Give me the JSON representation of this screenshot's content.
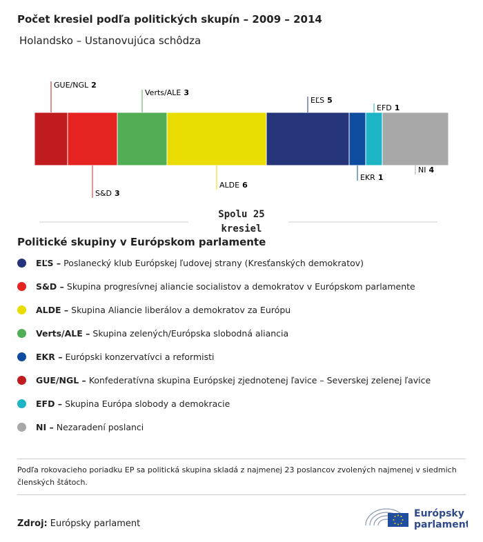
{
  "chart_data": {
    "type": "stacked_bar",
    "title": "Počet kresiel podľa politických skupín – 2009 – 2014",
    "subtitle": "Holandsko – Ustanovujúca schôdza",
    "total_label": "Spolu 25 kresiel",
    "series": [
      {
        "name": "GUE/NGL",
        "color": "#c01b1f",
        "values": [
          2
        ]
      },
      {
        "name": "S&D",
        "color": "#e52421",
        "values": [
          3
        ]
      },
      {
        "name": "Verts/ALE",
        "color": "#52ae55",
        "values": [
          3
        ]
      },
      {
        "name": "ALDE",
        "color": "#e8dc00",
        "values": [
          6
        ]
      },
      {
        "name": "EĽS",
        "color": "#26357a",
        "values": [
          5
        ]
      },
      {
        "name": "EKR",
        "color": "#0d4c9e",
        "values": [
          1
        ]
      },
      {
        "name": "EFD",
        "color": "#1db5c6",
        "values": [
          1
        ]
      },
      {
        "name": "NI",
        "color": "#a8a8a8",
        "values": [
          4
        ]
      }
    ]
  },
  "legend": {
    "title": "Politické skupiny v Európskom parlamente",
    "items": [
      {
        "abbr": "EĽS –",
        "description": "Poslanecký klub Európskej ľudovej strany (Kresťanských demokratov)",
        "color": "#26357a"
      },
      {
        "abbr": "S&D –",
        "description": "Skupina progresívnej aliancie socialistov a demokratov v Európskom parlamente",
        "color": "#e52421"
      },
      {
        "abbr": "ALDE –",
        "description": "Skupina Aliancie liberálov a demokratov za Európu",
        "color": "#e8dc00"
      },
      {
        "abbr": "Verts/ALE –",
        "description": "Skupina zelených/Európska slobodná aliancia",
        "color": "#52ae55"
      },
      {
        "abbr": "EKR –",
        "description": "Európski konzervatívci a reformisti",
        "color": "#0d4c9e"
      },
      {
        "abbr": "GUE/NGL –",
        "description": "Konfederatívna skupina Európskej zjednotenej ľavice – Severskej zelenej ľavice",
        "color": "#c01b1f"
      },
      {
        "abbr": "EFD –",
        "description": "Skupina Európa slobody a demokracie",
        "color": "#1db5c6"
      },
      {
        "abbr": "NI –",
        "description": "Nezaradení poslanci",
        "color": "#a8a8a8"
      }
    ]
  },
  "note": "Podľa rokovacieho poriadku EP sa politická skupina skladá z najmenej 23 poslancov zvolených najmenej v siedmich členských štátoch.",
  "source": {
    "label": "Zdroj:",
    "text": "Európsky parlament"
  },
  "logo": {
    "line1": "Európsky",
    "line2": "parlament"
  }
}
